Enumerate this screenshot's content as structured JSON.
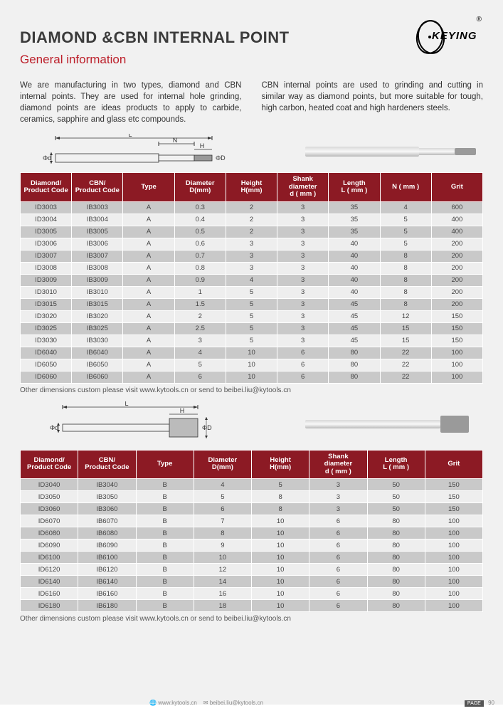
{
  "title": "DIAMOND &CBN INTERNAL POINT",
  "subtitle": "General information",
  "logo": {
    "text": "KEYING",
    "registered": "®"
  },
  "intro": {
    "left": "We are manufacturing in two types, diamond and CBN internal points. They are used for internal hole grinding, diamond points are ideas products to apply to carbide, ceramics, sapphire and glass etc compounds.",
    "right": "CBN internal points are used to grinding and cutting in similar way as diamond points, but more suitable for tough, high carbon, heated coat and high hardeners steels."
  },
  "footnote": "Other dimensions custom please visit www.kytools.cn or send to beibei.liu@kytools.cn",
  "table1": {
    "headers": [
      "Diamond/\nProduct Code",
      "CBN/\nProduct Code",
      "Type",
      "Diameter\nD(mm)",
      "Height\nH(mm)",
      "Shank\ndiameter\nd ( mm )",
      "Length\nL ( mm )",
      "N ( mm )",
      "Grit"
    ],
    "rows": [
      [
        "ID3003",
        "IB3003",
        "A",
        "0.3",
        "2",
        "3",
        "35",
        "4",
        "600"
      ],
      [
        "ID3004",
        "IB3004",
        "A",
        "0.4",
        "2",
        "3",
        "35",
        "5",
        "400"
      ],
      [
        "ID3005",
        "IB3005",
        "A",
        "0.5",
        "2",
        "3",
        "35",
        "5",
        "400"
      ],
      [
        "ID3006",
        "IB3006",
        "A",
        "0.6",
        "3",
        "3",
        "40",
        "5",
        "200"
      ],
      [
        "ID3007",
        "IB3007",
        "A",
        "0.7",
        "3",
        "3",
        "40",
        "8",
        "200"
      ],
      [
        "ID3008",
        "IB3008",
        "A",
        "0.8",
        "3",
        "3",
        "40",
        "8",
        "200"
      ],
      [
        "ID3009",
        "IB3009",
        "A",
        "0.9",
        "4",
        "3",
        "40",
        "8",
        "200"
      ],
      [
        "ID3010",
        "IB3010",
        "A",
        "1",
        "5",
        "3",
        "40",
        "8",
        "200"
      ],
      [
        "ID3015",
        "IB3015",
        "A",
        "1.5",
        "5",
        "3",
        "45",
        "8",
        "200"
      ],
      [
        "ID3020",
        "IB3020",
        "A",
        "2",
        "5",
        "3",
        "45",
        "12",
        "150"
      ],
      [
        "ID3025",
        "IB3025",
        "A",
        "2.5",
        "5",
        "3",
        "45",
        "15",
        "150"
      ],
      [
        "ID3030",
        "IB3030",
        "A",
        "3",
        "5",
        "3",
        "45",
        "15",
        "150"
      ],
      [
        "ID6040",
        "IB6040",
        "A",
        "4",
        "10",
        "6",
        "80",
        "22",
        "100"
      ],
      [
        "ID6050",
        "IB6050",
        "A",
        "5",
        "10",
        "6",
        "80",
        "22",
        "100"
      ],
      [
        "ID6060",
        "IB6060",
        "A",
        "6",
        "10",
        "6",
        "80",
        "22",
        "100"
      ]
    ]
  },
  "table2": {
    "headers": [
      "Diamond/\nProduct Code",
      "CBN/\nProduct Code",
      "Type",
      "Diameter\nD(mm)",
      "Height\nH(mm)",
      "Shank\ndiameter\nd ( mm )",
      "Length\nL ( mm )",
      "Grit"
    ],
    "rows": [
      [
        "ID3040",
        "IB3040",
        "B",
        "4",
        "5",
        "3",
        "50",
        "150"
      ],
      [
        "ID3050",
        "IB3050",
        "B",
        "5",
        "8",
        "3",
        "50",
        "150"
      ],
      [
        "ID3060",
        "IB3060",
        "B",
        "6",
        "8",
        "3",
        "50",
        "150"
      ],
      [
        "ID6070",
        "IB6070",
        "B",
        "7",
        "10",
        "6",
        "80",
        "100"
      ],
      [
        "ID6080",
        "IB6080",
        "B",
        "8",
        "10",
        "6",
        "80",
        "100"
      ],
      [
        "ID6090",
        "IB6090",
        "B",
        "9",
        "10",
        "6",
        "80",
        "100"
      ],
      [
        "ID6100",
        "IB6100",
        "B",
        "10",
        "10",
        "6",
        "80",
        "100"
      ],
      [
        "ID6120",
        "IB6120",
        "B",
        "12",
        "10",
        "6",
        "80",
        "100"
      ],
      [
        "ID6140",
        "IB6140",
        "B",
        "14",
        "10",
        "6",
        "80",
        "100"
      ],
      [
        "ID6160",
        "IB6160",
        "B",
        "16",
        "10",
        "6",
        "80",
        "100"
      ],
      [
        "ID6180",
        "IB6180",
        "B",
        "18",
        "10",
        "6",
        "80",
        "100"
      ]
    ]
  },
  "diagram": {
    "labels": {
      "L": "L",
      "N": "N",
      "H": "H",
      "phid": "Φd",
      "phiD": "ΦD"
    }
  },
  "footer": {
    "web": "www.kytools.cn",
    "email": "beibei.liu@kytools.cn",
    "page_label": "PAGE",
    "page_num": "90"
  },
  "colors": {
    "header_bg": "#8c1a24",
    "accent": "#bc1f2a",
    "row_odd": "#c9c9c9",
    "row_even": "#eeeeee",
    "page_bg": "#f1f1f1"
  }
}
